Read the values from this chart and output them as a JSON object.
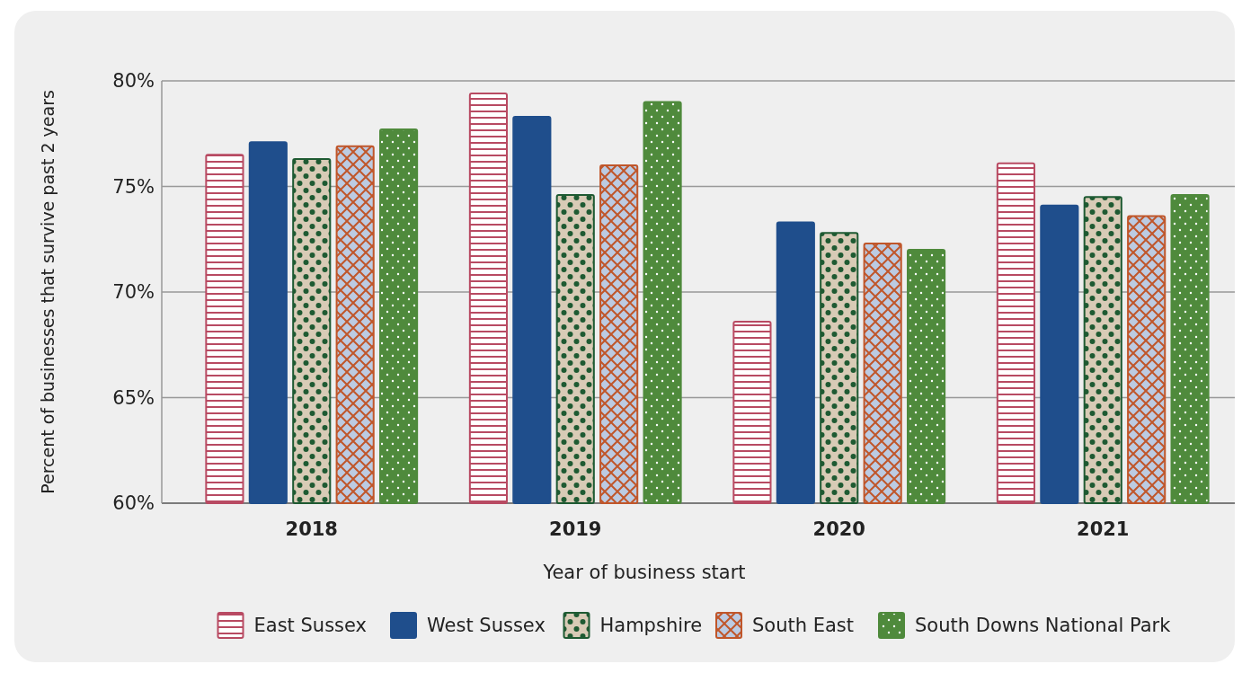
{
  "chart_data": {
    "type": "bar",
    "xlabel": "Year of business start",
    "ylabel": "Percent of businesses that survive past 2 years",
    "categories": [
      "2018",
      "2019",
      "2020",
      "2021"
    ],
    "series": [
      {
        "name": "East Sussex",
        "color": "#b84a62",
        "values": [
          76.5,
          79.4,
          68.6,
          76.1
        ]
      },
      {
        "name": "West Sussex",
        "color": "#1f4e8c",
        "values": [
          77.1,
          78.3,
          73.3,
          74.1
        ]
      },
      {
        "name": "Hampshire",
        "color": "#1e5a32",
        "values": [
          76.3,
          74.6,
          72.8,
          74.5
        ]
      },
      {
        "name": "South East",
        "color": "#c0562a",
        "values": [
          76.9,
          76.0,
          72.3,
          73.6
        ]
      },
      {
        "name": "South Downs National Park",
        "color": "#4f8a3c",
        "values": [
          77.7,
          79.0,
          72.0,
          74.6
        ]
      }
    ],
    "ylim": [
      60,
      80
    ],
    "yticks": [
      {
        "value": 60,
        "label": "60%"
      },
      {
        "value": 65,
        "label": "65%"
      },
      {
        "value": 70,
        "label": "70%"
      },
      {
        "value": 75,
        "label": "75%"
      },
      {
        "value": 80,
        "label": "80%"
      }
    ],
    "grid": "y",
    "legend": "bottom"
  }
}
